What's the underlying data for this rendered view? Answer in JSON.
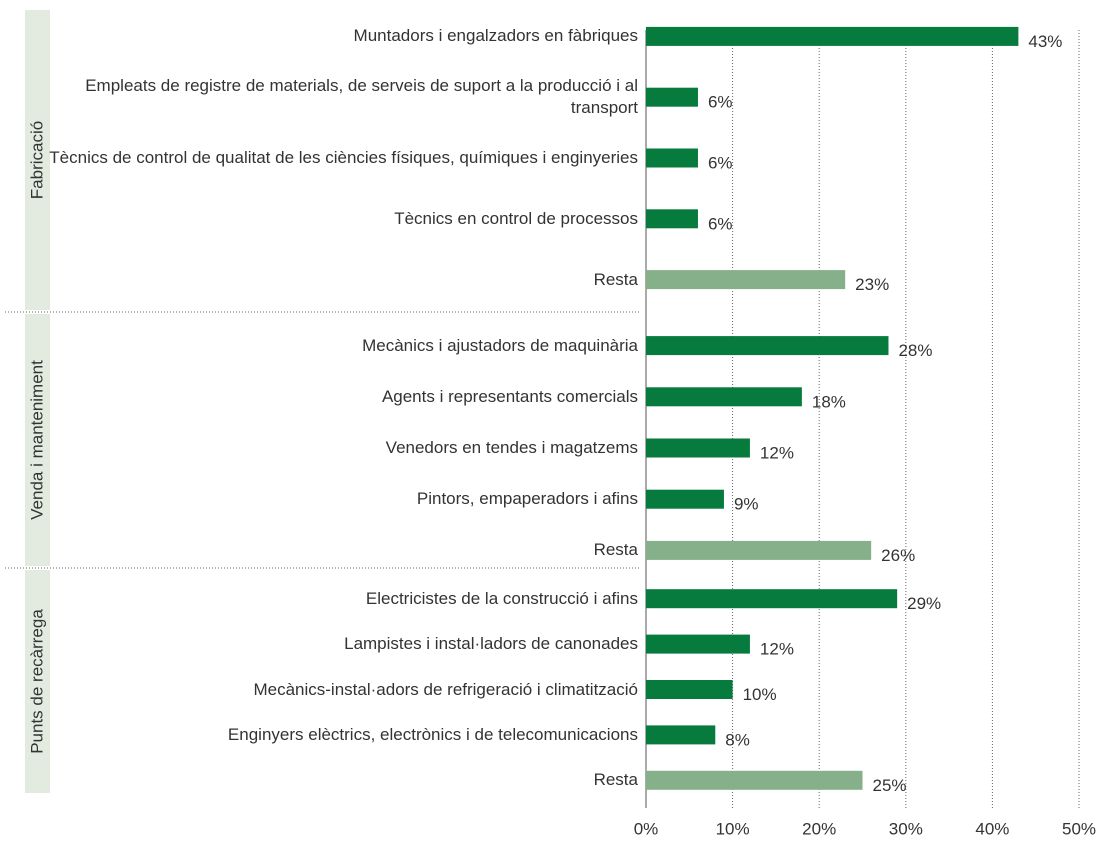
{
  "chart_data": {
    "type": "grouped-hbar",
    "color": "#077a3e",
    "rest_color": "#85b08a",
    "group_color": "#e3ebe1",
    "grid": true,
    "xlim": [
      0,
      50
    ],
    "xticks": [
      {
        "value": 0,
        "label": "0%"
      },
      {
        "value": 10,
        "label": "10%"
      },
      {
        "value": 20,
        "label": "20%"
      },
      {
        "value": 30,
        "label": "30%"
      },
      {
        "value": 40,
        "label": "40%"
      },
      {
        "value": 50,
        "label": "50%"
      }
    ],
    "groups": [
      {
        "name": "Fabricació",
        "categories": [
          "Muntadors i engalzadors en fàbriques",
          "Empleats de registre de materials, de serveis de suport a la producció i al transport",
          "Tècnics de control de qualitat de les ciències físiques, químiques i enginyeries",
          "Tècnics en control de processos"
        ],
        "values": [
          43,
          6,
          6,
          6
        ],
        "value_labels": [
          "43%",
          "6%",
          "6%",
          "6%"
        ],
        "rest": {
          "category": "Resta",
          "value": 23,
          "value_label": "23%"
        }
      },
      {
        "name": "Venda i manteniment",
        "categories": [
          "Mecànics i ajustadors de maquinària",
          "Agents i representants comercials",
          "Venedors en tendes i magatzems",
          "Pintors, empaperadors i afins"
        ],
        "values": [
          28,
          18,
          12,
          9
        ],
        "value_labels": [
          "28%",
          "18%",
          "12%",
          "9%"
        ],
        "rest": {
          "category": "Resta",
          "value": 26,
          "value_label": "26%"
        }
      },
      {
        "name": "Punts de recàrrega",
        "categories": [
          "Electricistes de la construcció i afins",
          "Lampistes i instal·ladors de canonades",
          "Mecànics-instal·adors de refrigeració i climatització",
          "Enginyers elèctrics, electrònics i de telecomunicacions"
        ],
        "values": [
          29,
          12,
          10,
          8
        ],
        "value_labels": [
          "29%",
          "12%",
          "10%",
          "8%"
        ],
        "rest": {
          "category": "Resta",
          "value": 25,
          "value_label": "25%"
        }
      }
    ]
  }
}
